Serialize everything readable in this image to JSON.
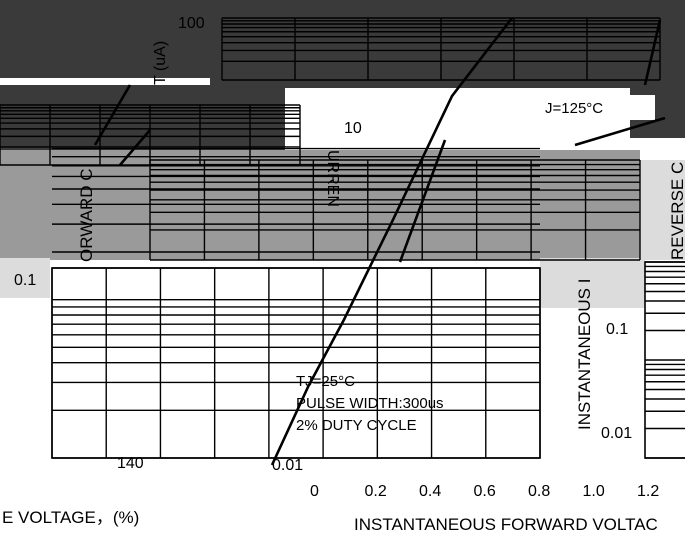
{
  "chart_data": [
    {
      "type": "line",
      "title": "",
      "xlabel": "INSTANTANEOUS FORWARD VOLTAC",
      "ylabel": "INSTANTANEOUS FORWARD C",
      "x_ticks": [
        "0",
        "0.2",
        "0.4",
        "0.6",
        "0.8",
        "1.0",
        "1.2"
      ],
      "y_ticks": [
        "0.01",
        "0.1",
        "10",
        "100"
      ],
      "y_scale": "log",
      "annotations": {
        "tj_hot": "J=125°C",
        "tj_cold": "TJ=25°C",
        "pulse": "PULSE WIDTH:300us",
        "duty": "2% DUTY CYCLE"
      },
      "series": [
        {
          "name": "",
          "x": [
            0.0,
            0.15,
            0.3,
            0.5,
            0.75,
            1.0
          ],
          "y": [
            0.01,
            0.05,
            0.2,
            1.5,
            20,
            100
          ]
        }
      ],
      "xlim": [
        0,
        1.2
      ]
    },
    {
      "type": "line",
      "title": "",
      "xlabel": "E VOLTAGE，(%)",
      "ylabel": "REVERSE C",
      "y_ticks": [
        "0.01",
        "0.1",
        "100"
      ],
      "x_ticks": [
        "140"
      ],
      "y_scale": "log",
      "series": []
    }
  ],
  "left_unit": "T (uA)",
  "right_axis_fragment": "INSTANTANEOUS I",
  "left_axis_fragment": "ORWARD C",
  "vertical_fragment": "URREN"
}
